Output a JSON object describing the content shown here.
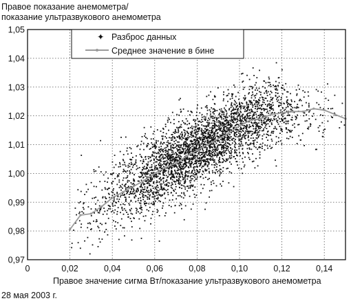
{
  "caption_date": "28 мая 2003 г.",
  "chart_data": {
    "type": "scatter",
    "ylabel_line1": "Правое показание анемометра/",
    "ylabel_line2": "показание ультразвукового анемометра",
    "xlabel": "Правое значение сигма Вт/показание ультразвукового анемометра",
    "xlim": [
      0,
      0.15
    ],
    "ylim": [
      0.97,
      1.05
    ],
    "x_ticks": [
      "0",
      "0,02",
      "0,04",
      "0,06",
      "0,08",
      "0,10",
      "0,12",
      "0,14"
    ],
    "y_ticks": [
      "0,97",
      "0,98",
      "0,99",
      "1,00",
      "1,01",
      "1,02",
      "1,03",
      "1,04",
      "1,05"
    ],
    "grid": true,
    "legend_position": "top-left",
    "series": [
      {
        "name": "Разброс данных",
        "kind": "scatter",
        "color": "#111111",
        "point_count_approx": 3500,
        "distribution": {
          "x_range": [
            0.02,
            0.15
          ],
          "trend": "mean y rises from 0.981 at x=0.02 to 1.022 at x=0.135"
        }
      },
      {
        "name": "Среднее значение в бине",
        "kind": "line",
        "color": "#9a9a9a",
        "x": [
          0.02,
          0.025,
          0.03,
          0.035,
          0.04,
          0.045,
          0.05,
          0.055,
          0.06,
          0.065,
          0.07,
          0.075,
          0.08,
          0.085,
          0.09,
          0.095,
          0.1,
          0.105,
          0.11,
          0.115,
          0.12,
          0.125,
          0.13,
          0.135,
          0.14,
          0.145,
          0.15
        ],
        "y": [
          0.9805,
          0.9855,
          0.986,
          0.9885,
          0.9915,
          0.9935,
          0.9955,
          0.9975,
          1.0,
          1.002,
          1.0035,
          1.006,
          1.008,
          1.01,
          1.012,
          1.014,
          1.0165,
          1.0185,
          1.019,
          1.0205,
          1.021,
          1.0215,
          1.0215,
          1.0225,
          1.022,
          1.0205,
          1.019
        ]
      }
    ]
  }
}
